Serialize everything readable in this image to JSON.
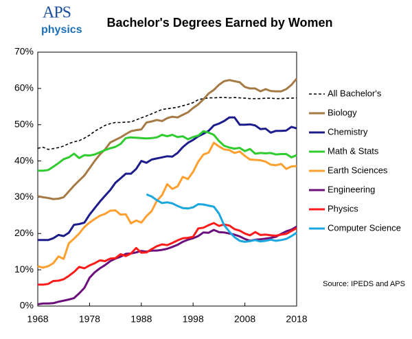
{
  "logo": {
    "name": "APS",
    "sub": "physics"
  },
  "chart_data": {
    "type": "line",
    "title": "Bachelor's Degrees Earned by Women",
    "source": "Source: IPEDS and APS",
    "x": [
      1968,
      1969,
      1970,
      1971,
      1972,
      1973,
      1974,
      1975,
      1976,
      1977,
      1978,
      1979,
      1980,
      1981,
      1982,
      1983,
      1984,
      1985,
      1986,
      1987,
      1988,
      1989,
      1990,
      1991,
      1992,
      1993,
      1994,
      1995,
      1996,
      1997,
      1998,
      1999,
      2000,
      2001,
      2002,
      2003,
      2004,
      2005,
      2006,
      2007,
      2008,
      2009,
      2010,
      2011,
      2012,
      2013,
      2014,
      2015,
      2016,
      2017,
      2018
    ],
    "xlim": [
      1968,
      2018
    ],
    "xticks": [
      1968,
      1978,
      1988,
      1998,
      2008,
      2018
    ],
    "ylim": [
      0,
      70
    ],
    "yticks": [
      {
        "value": 0,
        "label": "0%"
      },
      {
        "value": 10,
        "label": "10%"
      },
      {
        "value": 20,
        "label": "20%"
      },
      {
        "value": 30,
        "label": "30%"
      },
      {
        "value": 40,
        "label": "40%"
      },
      {
        "value": 50,
        "label": "50%"
      },
      {
        "value": 60,
        "label": "60%"
      },
      {
        "value": 70,
        "label": "70%"
      }
    ],
    "series": [
      {
        "name": "All Bachelor's",
        "color": "#000000",
        "dashed": true,
        "values": [
          43.5,
          43.8,
          43.2,
          43.4,
          43.7,
          44.1,
          44.8,
          45.3,
          45.6,
          46.3,
          47.1,
          48.2,
          49.0,
          49.8,
          50.3,
          50.6,
          50.6,
          50.7,
          50.8,
          51.3,
          51.9,
          52.4,
          53.0,
          53.6,
          54.2,
          54.4,
          54.6,
          54.8,
          55.2,
          55.6,
          56.1,
          56.9,
          57.2,
          57.4,
          57.4,
          57.5,
          57.5,
          57.4,
          57.5,
          57.4,
          57.3,
          57.2,
          57.2,
          57.2,
          57.3,
          57.3,
          57.2,
          57.2,
          57.3,
          57.3,
          57.4
        ]
      },
      {
        "name": "Biology",
        "color": "#a57a45",
        "values": [
          30.3,
          30.0,
          29.8,
          29.5,
          29.6,
          30.0,
          31.6,
          33.2,
          34.6,
          36.0,
          38.0,
          40.0,
          41.8,
          43.2,
          45.1,
          45.8,
          46.5,
          47.4,
          48.2,
          48.5,
          48.7,
          50.6,
          50.9,
          51.3,
          51.0,
          51.8,
          52.2,
          52.0,
          52.7,
          53.4,
          54.6,
          55.6,
          57.0,
          58.6,
          59.6,
          61.0,
          62.0,
          62.3,
          62.0,
          61.7,
          60.4,
          60.0,
          60.0,
          59.2,
          59.8,
          59.3,
          59.2,
          59.2,
          59.8,
          61.0,
          62.7
        ]
      },
      {
        "name": "Chemistry",
        "color": "#1c1c8c",
        "values": [
          18.2,
          18.2,
          18.2,
          18.7,
          19.6,
          19.3,
          20.2,
          22.4,
          22.6,
          23.0,
          25.2,
          27.0,
          28.8,
          30.4,
          32.0,
          34.0,
          35.2,
          36.5,
          36.5,
          37.8,
          40.0,
          39.5,
          40.4,
          40.7,
          41.0,
          41.3,
          41.2,
          42.2,
          43.8,
          45.0,
          45.8,
          46.8,
          47.5,
          48.3,
          49.8,
          50.3,
          51.0,
          52.0,
          52.0,
          50.0,
          50.0,
          50.1,
          49.8,
          48.8,
          48.9,
          47.8,
          48.3,
          48.3,
          48.4,
          49.4,
          49.0
        ]
      },
      {
        "name": "Math & Stats",
        "color": "#2ecc2e",
        "values": [
          37.3,
          37.3,
          37.5,
          38.4,
          39.4,
          40.5,
          41.0,
          42.0,
          40.8,
          41.6,
          41.5,
          41.8,
          42.4,
          43.0,
          43.5,
          43.9,
          44.7,
          46.3,
          46.5,
          46.4,
          46.3,
          46.2,
          46.3,
          46.5,
          47.2,
          46.8,
          47.2,
          46.6,
          46.8,
          46.0,
          46.6,
          47.0,
          48.2,
          47.8,
          47.2,
          45.5,
          44.2,
          43.7,
          43.4,
          43.6,
          42.7,
          43.3,
          42.0,
          42.2,
          42.1,
          42.2,
          41.8,
          41.9,
          41.9,
          41.0,
          41.6
        ]
      },
      {
        "name": "Earth Sciences",
        "color": "#ff9f2e",
        "values": [
          11.0,
          10.6,
          11.0,
          11.8,
          13.7,
          13.0,
          17.3,
          18.6,
          20.0,
          21.8,
          23.0,
          24.0,
          24.9,
          25.4,
          26.3,
          26.4,
          25.2,
          25.3,
          22.8,
          23.6,
          23.0,
          24.8,
          26.2,
          29.0,
          30.6,
          33.6,
          32.3,
          33.0,
          35.6,
          35.0,
          37.0,
          39.8,
          41.8,
          42.3,
          45.0,
          44.0,
          43.2,
          43.0,
          42.2,
          42.6,
          41.4,
          40.4,
          40.3,
          40.2,
          39.8,
          39.0,
          38.8,
          39.2,
          37.8,
          38.5,
          38.6
        ]
      },
      {
        "name": "Engineering",
        "color": "#6b0f7a",
        "values": [
          0.5,
          0.7,
          0.7,
          0.8,
          1.2,
          1.5,
          1.8,
          2.2,
          3.5,
          5.0,
          7.8,
          9.3,
          10.4,
          11.3,
          12.4,
          13.1,
          13.6,
          14.4,
          14.5,
          14.8,
          15.2,
          15.0,
          15.3,
          15.3,
          15.5,
          15.8,
          16.3,
          16.9,
          17.7,
          18.3,
          18.7,
          19.3,
          20.3,
          20.2,
          21.0,
          20.4,
          20.3,
          20.0,
          19.7,
          19.2,
          18.5,
          18.0,
          18.3,
          18.4,
          18.6,
          18.8,
          19.1,
          19.9,
          20.6,
          21.1,
          21.9
        ]
      },
      {
        "name": "Physics",
        "color": "#ff1a1a",
        "values": [
          5.9,
          5.9,
          6.1,
          6.9,
          7.0,
          7.4,
          8.3,
          9.4,
          10.8,
          10.4,
          11.2,
          11.8,
          12.6,
          12.4,
          13.1,
          13.2,
          14.3,
          13.8,
          14.5,
          16.0,
          14.7,
          14.8,
          15.7,
          16.5,
          17.0,
          16.8,
          17.4,
          18.1,
          18.7,
          18.8,
          19.1,
          21.4,
          21.6,
          22.3,
          22.9,
          22.1,
          22.5,
          22.2,
          21.2,
          20.8,
          20.0,
          19.5,
          20.4,
          19.6,
          19.7,
          19.5,
          19.4,
          19.7,
          19.9,
          20.7,
          21.5
        ]
      },
      {
        "name": "Computer Science",
        "color": "#1aa7e0",
        "values": [
          null,
          null,
          null,
          null,
          null,
          null,
          null,
          null,
          null,
          null,
          null,
          null,
          null,
          null,
          null,
          null,
          null,
          null,
          null,
          null,
          null,
          30.8,
          30.2,
          29.2,
          28.4,
          28.6,
          28.3,
          27.6,
          27.0,
          26.9,
          27.2,
          28.1,
          28.0,
          27.7,
          27.4,
          25.5,
          22.3,
          20.5,
          19.0,
          18.0,
          17.7,
          17.9,
          18.2,
          17.8,
          18.0,
          18.3,
          18.0,
          18.2,
          18.5,
          19.3,
          20.2
        ]
      }
    ]
  }
}
